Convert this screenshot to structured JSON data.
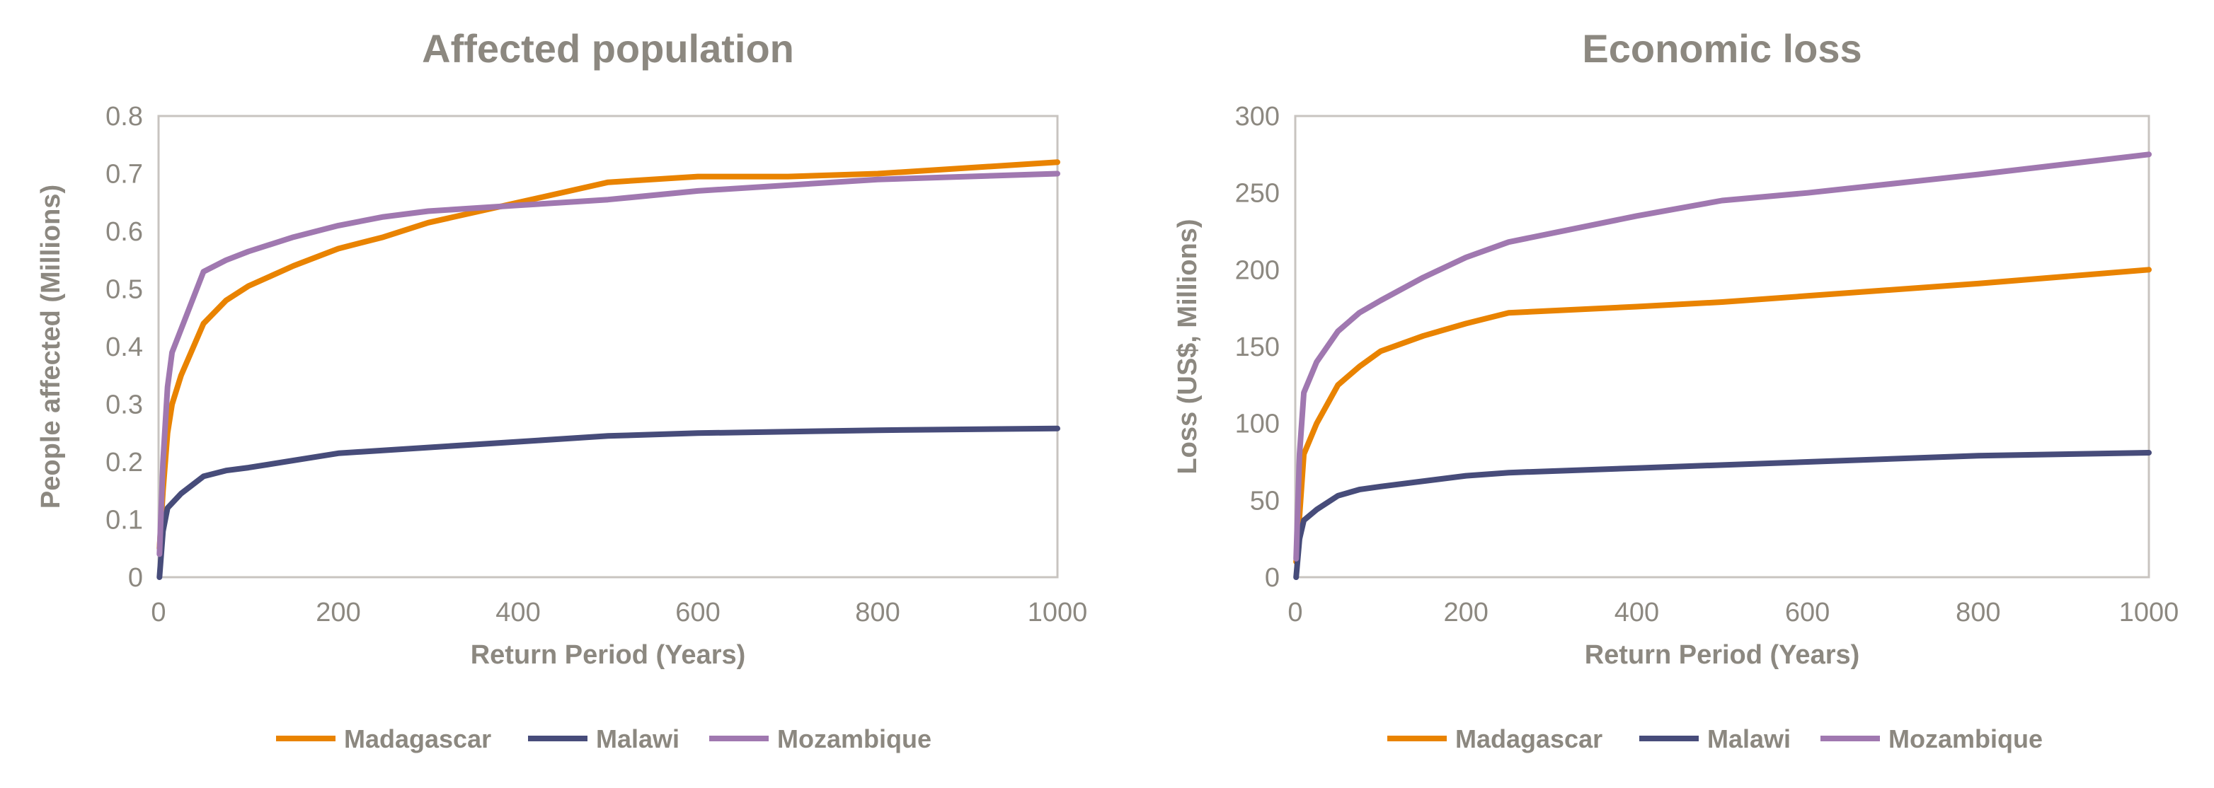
{
  "colors": {
    "Madagascar": "#E98300",
    "Malawi": "#474C7A",
    "Mozambique": "#A078B0",
    "text": "#8C8880",
    "frame": "#C8C4C0"
  },
  "chart_data": [
    {
      "type": "line",
      "title": "Affected population",
      "xlabel": "Return Period (Years)",
      "ylabel": "People affected (Millions)",
      "xlim": [
        0,
        1000
      ],
      "ylim": [
        0,
        0.8
      ],
      "xticks": [
        "0",
        "200",
        "400",
        "600",
        "800",
        "1000"
      ],
      "yticks": [
        "0",
        "0.1",
        "0.2",
        "0.3",
        "0.4",
        "0.5",
        "0.6",
        "0.7",
        "0.8"
      ],
      "grid": false,
      "legend": "bottom",
      "series": [
        {
          "name": "Madagascar",
          "x": [
            1,
            5,
            10,
            15,
            25,
            50,
            75,
            100,
            150,
            200,
            250,
            300,
            400,
            500,
            600,
            700,
            800,
            900,
            1000
          ],
          "y": [
            0.05,
            0.15,
            0.25,
            0.3,
            0.35,
            0.44,
            0.48,
            0.505,
            0.54,
            0.57,
            0.59,
            0.615,
            0.65,
            0.685,
            0.695,
            0.695,
            0.7,
            0.71,
            0.72
          ]
        },
        {
          "name": "Malawi",
          "x": [
            1,
            5,
            10,
            25,
            50,
            75,
            100,
            200,
            300,
            400,
            500,
            600,
            800,
            1000
          ],
          "y": [
            0,
            0.08,
            0.12,
            0.145,
            0.175,
            0.185,
            0.19,
            0.215,
            0.225,
            0.235,
            0.245,
            0.25,
            0.255,
            0.258
          ]
        },
        {
          "name": "Mozambique",
          "x": [
            1,
            5,
            10,
            15,
            25,
            50,
            75,
            100,
            150,
            200,
            250,
            300,
            400,
            500,
            600,
            800,
            1000
          ],
          "y": [
            0.04,
            0.2,
            0.33,
            0.39,
            0.43,
            0.53,
            0.55,
            0.565,
            0.59,
            0.61,
            0.625,
            0.635,
            0.645,
            0.655,
            0.67,
            0.69,
            0.7
          ]
        }
      ]
    },
    {
      "type": "line",
      "title": "Economic loss",
      "xlabel": "Return Period (Years)",
      "ylabel": "Loss (US$, Millions)",
      "xlim": [
        0,
        1000
      ],
      "ylim": [
        0,
        300
      ],
      "xticks": [
        "0",
        "200",
        "400",
        "600",
        "800",
        "1000"
      ],
      "yticks": [
        "0",
        "50",
        "100",
        "150",
        "200",
        "250",
        "300"
      ],
      "grid": false,
      "legend": "bottom",
      "series": [
        {
          "name": "Madagascar",
          "x": [
            1,
            5,
            10,
            25,
            50,
            75,
            100,
            150,
            200,
            250,
            400,
            500,
            600,
            800,
            1000
          ],
          "y": [
            10,
            40,
            80,
            100,
            125,
            137,
            147,
            157,
            165,
            172,
            176,
            179,
            183,
            191,
            200
          ]
        },
        {
          "name": "Malawi",
          "x": [
            1,
            5,
            10,
            25,
            50,
            75,
            100,
            200,
            250,
            400,
            600,
            800,
            1000
          ],
          "y": [
            0,
            25,
            37,
            44,
            53,
            57,
            59,
            66,
            68,
            71,
            75,
            79,
            81
          ]
        },
        {
          "name": "Mozambique",
          "x": [
            1,
            5,
            10,
            25,
            50,
            75,
            100,
            150,
            200,
            250,
            400,
            500,
            600,
            800,
            1000
          ],
          "y": [
            12,
            80,
            120,
            140,
            160,
            172,
            180,
            195,
            208,
            218,
            235,
            245,
            250,
            262,
            275
          ]
        }
      ]
    }
  ]
}
